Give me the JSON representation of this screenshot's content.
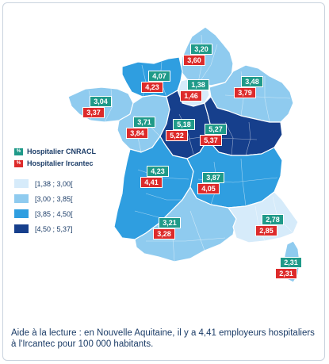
{
  "legend": {
    "cnracl_icon": "percent-icon",
    "cnracl_label": "Hospitalier CNRACL",
    "ircantec_icon": "percent-icon",
    "ircantec_label": "Hospitalier Ircantec",
    "classes": [
      {
        "label": "[1,38 ; 3,00[",
        "color": "#d6ebfa"
      },
      {
        "label": "[3,00 ; 3,85[",
        "color": "#8fcbef"
      },
      {
        "label": "[3,85 ; 4,50[",
        "color": "#2f9ee0"
      },
      {
        "label": "[4,50 ; 5,37]",
        "color": "#163f8c"
      }
    ]
  },
  "colors": {
    "cnracl": "#1f9a89",
    "ircantec": "#dd2b2b"
  },
  "regions": {
    "hauts_de_france": {
      "cnracl": "3,20",
      "ircantec": "3,60"
    },
    "normandie": {
      "cnracl": "4,07",
      "ircantec": "4,23"
    },
    "ile_de_france": {
      "cnracl": "1,38",
      "ircantec": "1,46"
    },
    "grand_est": {
      "cnracl": "3,48",
      "ircantec": "3,79"
    },
    "bretagne": {
      "cnracl": "3,04",
      "ircantec": "3,37"
    },
    "pays_de_la_loire": {
      "cnracl": "3,71",
      "ircantec": "3,84"
    },
    "centre_val_de_loire": {
      "cnracl": "5,18",
      "ircantec": "5,22"
    },
    "bourgogne_franche_comte": {
      "cnracl": "5,27",
      "ircantec": "5,37"
    },
    "nouvelle_aquitaine": {
      "cnracl": "4,23",
      "ircantec": "4,41"
    },
    "auvergne_rhone_alpes": {
      "cnracl": "3,87",
      "ircantec": "4,05"
    },
    "occitanie": {
      "cnracl": "3,21",
      "ircantec": "3,28"
    },
    "paca": {
      "cnracl": "2,78",
      "ircantec": "2,85"
    },
    "corse": {
      "cnracl": "2,31",
      "ircantec": "2,31"
    }
  },
  "caption": "Aide à la lecture : en Nouvelle Aquitaine, il y a 4,41 employeurs hospitaliers à l'Ircantec pour 100 000 habitants."
}
